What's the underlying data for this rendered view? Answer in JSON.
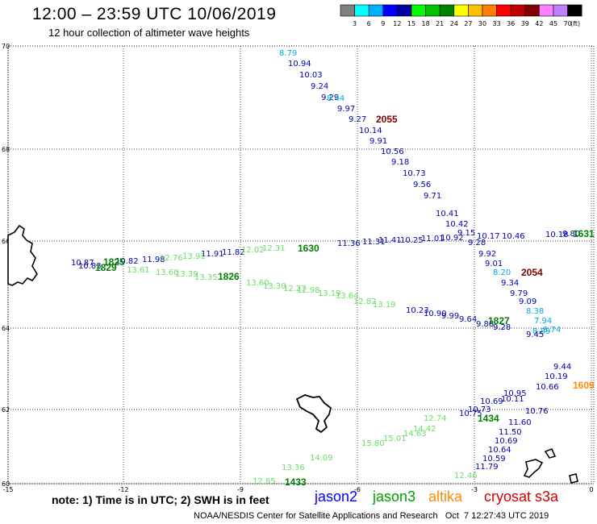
{
  "header": {
    "title": "12:00 – 23:59 UTC 10/06/2019",
    "subtitle": "12 hour collection of altimeter wave heights"
  },
  "colorbar": {
    "unit": "(ft)",
    "ticks": [
      "3",
      "6",
      "9",
      "12",
      "15",
      "18",
      "21",
      "24",
      "27",
      "30",
      "33",
      "36",
      "39",
      "42",
      "45",
      "70"
    ],
    "colors": [
      "#808080",
      "#00ffff",
      "#00b0ff",
      "#0000ff",
      "#0000a0",
      "#00ff00",
      "#00c000",
      "#008000",
      "#ffff00",
      "#ffc000",
      "#ff8000",
      "#ff0000",
      "#c00000",
      "#800000",
      "#ff80ff",
      "#c080ff",
      "#000000"
    ]
  },
  "axes": {
    "x_ticks": [
      "-15",
      "-12",
      "-9",
      "-6",
      "-3",
      "0"
    ],
    "y_ticks": [
      "70",
      "68",
      "66",
      "64",
      "62",
      "60"
    ]
  },
  "colors": {
    "jason2": "#0000b0",
    "jason3": "#008000",
    "altika": "#ff8c00",
    "cryosat": "#c00000",
    "light_green": "#66dd66",
    "cyan": "#00a8e0"
  },
  "tracks": [
    {
      "id": "jason2-2055",
      "labels": [
        "10.94",
        "10.03",
        "9.24",
        "9.29",
        "9.97",
        "9.27",
        "10.14",
        "9.91",
        "10.56",
        "9.18",
        "10.73",
        "9.56",
        "9.71",
        "10.41",
        "10.42",
        "9.15",
        "9.28",
        "9.92",
        "9.01",
        "9.34",
        "9.79",
        "9.09"
      ]
    },
    {
      "id": "cyan-2055",
      "labels": [
        "8.79",
        "8.44",
        "8.20",
        "8.38",
        "7.94",
        "8.74",
        "8.89"
      ]
    },
    {
      "id": "jason2-66",
      "labels": [
        "10.87",
        "10.83",
        "10.82",
        "11.98",
        "11.91",
        "11.82",
        "11.36",
        "11.31",
        "11.41",
        "10.25",
        "11.01",
        "10.92",
        "10.17",
        "10.46",
        "10.18",
        "9.80"
      ]
    },
    {
      "id": "green-1826",
      "labels": [
        "13.61",
        "13.60",
        "13.39",
        "13.35",
        "13.60",
        "13.30",
        "12.27",
        "12.98",
        "13.19",
        "13.64",
        "12.82",
        "13.19",
        "12.76",
        "13.91",
        "12.02",
        "12.31"
      ]
    },
    {
      "id": "jason2-1827",
      "labels": [
        "10.23",
        "10.90",
        "9.99",
        "9.64",
        "9.88",
        "9.28",
        "9.45",
        "9.44",
        "10.19",
        "10.66"
      ]
    },
    {
      "id": "jason2-1434",
      "labels": [
        "10.75",
        "10.69",
        "10.11",
        "10.76",
        "11.60",
        "11.50",
        "10.69",
        "10.64",
        "10.59",
        "11.79",
        "10.95",
        "10.73"
      ]
    },
    {
      "id": "green-1433",
      "labels": [
        "12.85",
        "13.36",
        "14.09",
        "15.80",
        "15.01",
        "14.42",
        "12.74",
        "14.63",
        "12.46"
      ]
    }
  ],
  "pass_labels": {
    "p2055": "2055",
    "p2054": "2054",
    "p1826": "1826",
    "p1827": "1827",
    "p1825": "1825",
    "p1829": "1829",
    "p1630": "1630",
    "p1631": "1631",
    "p1434": "1434",
    "p1433": "1433",
    "p1609": "1609"
  },
  "note": "note: 1) Time is in UTC; 2) SWH is in feet",
  "satellites": {
    "jason2": "jason2",
    "jason3": "jason3",
    "altika": "altika",
    "cryosat": "cryosat s3a"
  },
  "footer": "NOAA/NESDIS Center for Satellite Applications and Research   Oct  7 12:27:43 UTC 2019"
}
